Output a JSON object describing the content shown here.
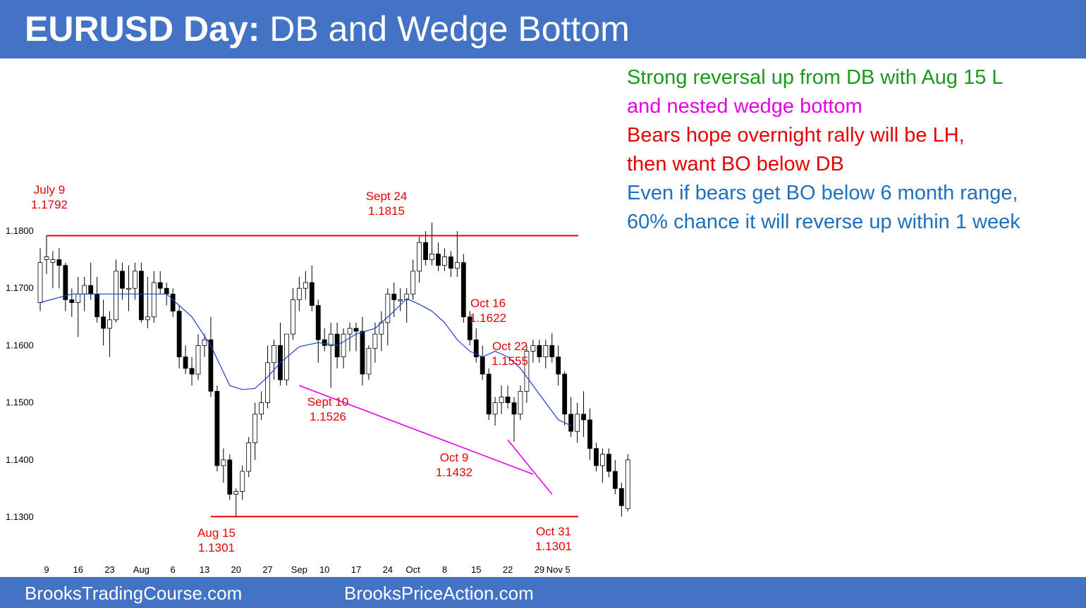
{
  "header": {
    "title_bold": "EURUSD Day:",
    "title_rest": " DB and Wedge Bottom"
  },
  "footer": {
    "left": "BrooksTradingCourse.com",
    "right": "BrooksPriceAction.com"
  },
  "notes": [
    {
      "text": "Strong reversal up from DB with Aug 15 L",
      "color": "#1a9a1a"
    },
    {
      "text": "and nested wedge bottom",
      "color": "#e600e6"
    },
    {
      "text": "Bears hope overnight rally will be LH,",
      "color": "#e60000"
    },
    {
      "text": "then want BO below DB",
      "color": "#e60000"
    },
    {
      "text": "Even if bears get BO below 6 month range,",
      "color": "#1f6fbf"
    },
    {
      "text": "60% chance it will reverse up within 1 week",
      "color": "#1f6fbf"
    }
  ],
  "chart_data": {
    "type": "candlestick",
    "ylim": [
      1.127,
      1.183
    ],
    "y_ticks": [
      "1.1300",
      "1.1400",
      "1.1500",
      "1.1600",
      "1.1700",
      "1.1800"
    ],
    "x_ticks": [
      {
        "label": "9",
        "bar": 1
      },
      {
        "label": "16",
        "bar": 6
      },
      {
        "label": "23",
        "bar": 11
      },
      {
        "label": "Aug",
        "bar": 16
      },
      {
        "label": "6",
        "bar": 21
      },
      {
        "label": "13",
        "bar": 26
      },
      {
        "label": "20",
        "bar": 31
      },
      {
        "label": "27",
        "bar": 36
      },
      {
        "label": "Sep",
        "bar": 41
      },
      {
        "label": "10",
        "bar": 45
      },
      {
        "label": "17",
        "bar": 50
      },
      {
        "label": "24",
        "bar": 55
      },
      {
        "label": "Oct",
        "bar": 59
      },
      {
        "label": "8",
        "bar": 64
      },
      {
        "label": "15",
        "bar": 69
      },
      {
        "label": "22",
        "bar": 74
      },
      {
        "label": "29",
        "bar": 79
      },
      {
        "label": "Nov 5",
        "bar": 82
      }
    ],
    "ohlc": [
      [
        1.1675,
        1.177,
        1.166,
        1.1745
      ],
      [
        1.175,
        1.1792,
        1.1725,
        1.1755
      ],
      [
        1.1745,
        1.1765,
        1.17,
        1.175
      ],
      [
        1.175,
        1.177,
        1.17,
        1.174
      ],
      [
        1.174,
        1.1745,
        1.166,
        1.168
      ],
      [
        1.168,
        1.17,
        1.165,
        1.1675
      ],
      [
        1.1675,
        1.172,
        1.1615,
        1.169
      ],
      [
        1.169,
        1.172,
        1.166,
        1.1705
      ],
      [
        1.1705,
        1.1745,
        1.168,
        1.169
      ],
      [
        1.169,
        1.172,
        1.164,
        1.165
      ],
      [
        1.165,
        1.168,
        1.16,
        1.163
      ],
      [
        1.163,
        1.166,
        1.158,
        1.1645
      ],
      [
        1.1645,
        1.175,
        1.164,
        1.173
      ],
      [
        1.173,
        1.1745,
        1.168,
        1.17
      ],
      [
        1.17,
        1.174,
        1.166,
        1.17
      ],
      [
        1.17,
        1.1745,
        1.168,
        1.173
      ],
      [
        1.173,
        1.1745,
        1.164,
        1.1645
      ],
      [
        1.1645,
        1.172,
        1.163,
        1.165
      ],
      [
        1.165,
        1.173,
        1.164,
        1.171
      ],
      [
        1.171,
        1.173,
        1.169,
        1.17
      ],
      [
        1.17,
        1.171,
        1.167,
        1.169
      ],
      [
        1.169,
        1.17,
        1.165,
        1.166
      ],
      [
        1.166,
        1.167,
        1.156,
        1.158
      ],
      [
        1.158,
        1.16,
        1.155,
        1.156
      ],
      [
        1.156,
        1.158,
        1.153,
        1.155
      ],
      [
        1.155,
        1.162,
        1.154,
        1.16
      ],
      [
        1.16,
        1.162,
        1.158,
        1.161
      ],
      [
        1.161,
        1.165,
        1.151,
        1.152
      ],
      [
        1.152,
        1.153,
        1.138,
        1.139
      ],
      [
        1.139,
        1.142,
        1.136,
        1.14
      ],
      [
        1.14,
        1.141,
        1.133,
        1.134
      ],
      [
        1.134,
        1.135,
        1.1301,
        1.1345
      ],
      [
        1.1345,
        1.139,
        1.133,
        1.138
      ],
      [
        1.138,
        1.144,
        1.137,
        1.143
      ],
      [
        1.143,
        1.15,
        1.14,
        1.148
      ],
      [
        1.148,
        1.152,
        1.147,
        1.15
      ],
      [
        1.15,
        1.16,
        1.149,
        1.157
      ],
      [
        1.157,
        1.161,
        1.154,
        1.16
      ],
      [
        1.16,
        1.164,
        1.153,
        1.154
      ],
      [
        1.154,
        1.162,
        1.153,
        1.162
      ],
      [
        1.162,
        1.17,
        1.161,
        1.168
      ],
      [
        1.168,
        1.172,
        1.166,
        1.17
      ],
      [
        1.17,
        1.173,
        1.168,
        1.171
      ],
      [
        1.171,
        1.174,
        1.166,
        1.167
      ],
      [
        1.167,
        1.168,
        1.157,
        1.161
      ],
      [
        1.161,
        1.163,
        1.159,
        1.16
      ],
      [
        1.16,
        1.164,
        1.1526,
        1.162
      ],
      [
        1.162,
        1.164,
        1.156,
        1.158
      ],
      [
        1.158,
        1.163,
        1.156,
        1.162
      ],
      [
        1.162,
        1.164,
        1.159,
        1.163
      ],
      [
        1.163,
        1.164,
        1.159,
        1.1625
      ],
      [
        1.1625,
        1.165,
        1.153,
        1.155
      ],
      [
        1.155,
        1.16,
        1.154,
        1.1595
      ],
      [
        1.1595,
        1.164,
        1.157,
        1.162
      ],
      [
        1.162,
        1.166,
        1.159,
        1.164
      ],
      [
        1.164,
        1.17,
        1.16,
        1.169
      ],
      [
        1.169,
        1.171,
        1.165,
        1.168
      ],
      [
        1.168,
        1.17,
        1.166,
        1.168
      ],
      [
        1.168,
        1.17,
        1.164,
        1.169
      ],
      [
        1.169,
        1.175,
        1.168,
        1.173
      ],
      [
        1.173,
        1.179,
        1.171,
        1.178
      ],
      [
        1.178,
        1.18,
        1.174,
        1.175
      ],
      [
        1.175,
        1.1815,
        1.174,
        1.176
      ],
      [
        1.176,
        1.178,
        1.173,
        1.174
      ],
      [
        1.174,
        1.177,
        1.173,
        1.1755
      ],
      [
        1.1755,
        1.1765,
        1.172,
        1.1735
      ],
      [
        1.1735,
        1.18,
        1.172,
        1.1745
      ],
      [
        1.1745,
        1.176,
        1.164,
        1.165
      ],
      [
        1.165,
        1.166,
        1.16,
        1.161
      ],
      [
        1.161,
        1.163,
        1.157,
        1.158
      ],
      [
        1.158,
        1.16,
        1.154,
        1.155
      ],
      [
        1.155,
        1.156,
        1.147,
        1.148
      ],
      [
        1.148,
        1.151,
        1.146,
        1.15
      ],
      [
        1.15,
        1.153,
        1.148,
        1.151
      ],
      [
        1.151,
        1.153,
        1.149,
        1.15
      ],
      [
        1.15,
        1.151,
        1.1432,
        1.148
      ],
      [
        1.148,
        1.153,
        1.147,
        1.152
      ],
      [
        1.152,
        1.16,
        1.15,
        1.159
      ],
      [
        1.159,
        1.161,
        1.157,
        1.16
      ],
      [
        1.16,
        1.161,
        1.157,
        1.158
      ],
      [
        1.158,
        1.161,
        1.156,
        1.16
      ],
      [
        1.16,
        1.1622,
        1.157,
        1.158
      ],
      [
        1.158,
        1.16,
        1.153,
        1.155
      ],
      [
        1.155,
        1.1555,
        1.146,
        1.148
      ],
      [
        1.148,
        1.151,
        1.144,
        1.145
      ],
      [
        1.145,
        1.15,
        1.143,
        1.148
      ],
      [
        1.148,
        1.152,
        1.144,
        1.147
      ],
      [
        1.147,
        1.149,
        1.14,
        1.142
      ],
      [
        1.142,
        1.143,
        1.138,
        1.139
      ],
      [
        1.139,
        1.142,
        1.136,
        1.141
      ],
      [
        1.141,
        1.142,
        1.137,
        1.138
      ],
      [
        1.138,
        1.14,
        1.134,
        1.135
      ],
      [
        1.135,
        1.136,
        1.1301,
        1.132
      ],
      [
        1.1315,
        1.141,
        1.131,
        1.14
      ]
    ],
    "ma": [
      [
        0,
        1.1675
      ],
      [
        5,
        1.169
      ],
      [
        10,
        1.169
      ],
      [
        15,
        1.169
      ],
      [
        20,
        1.169
      ],
      [
        24,
        1.165
      ],
      [
        27,
        1.16
      ],
      [
        30,
        1.153
      ],
      [
        32,
        1.1523
      ],
      [
        34,
        1.1525
      ],
      [
        36,
        1.1545
      ],
      [
        38,
        1.157
      ],
      [
        41,
        1.1598
      ],
      [
        44,
        1.1605
      ],
      [
        47,
        1.16
      ],
      [
        50,
        1.162
      ],
      [
        53,
        1.163
      ],
      [
        56,
        1.166
      ],
      [
        58,
        1.1682
      ],
      [
        60,
        1.1672
      ],
      [
        62,
        1.166
      ],
      [
        64,
        1.164
      ],
      [
        66,
        1.161
      ],
      [
        68,
        1.159
      ],
      [
        70,
        1.158
      ],
      [
        72,
        1.159
      ],
      [
        74,
        1.158
      ],
      [
        76,
        1.156
      ],
      [
        78,
        1.153
      ],
      [
        80,
        1.15
      ],
      [
        82,
        1.147
      ],
      [
        84,
        1.146
      ]
    ],
    "annotations": [
      {
        "label": "July 9",
        "value": "1.1792"
      },
      {
        "label": "Sept 24",
        "value": "1.1815"
      },
      {
        "label": "Oct 16",
        "value": "1.1622"
      },
      {
        "label": "Oct 22",
        "value": "1.1555"
      },
      {
        "label": "Sept 10",
        "value": "1.1526"
      },
      {
        "label": "Oct 9",
        "value": "1.1432"
      },
      {
        "label": "Aug 15",
        "value": "1.1301"
      },
      {
        "label": "Oct 31",
        "value": "1.1301"
      }
    ],
    "colors": {
      "up": "#ffffff",
      "down": "#000000",
      "ma": "#1f3fcf",
      "range": "#e60000",
      "wedge": "#e600e6"
    }
  }
}
